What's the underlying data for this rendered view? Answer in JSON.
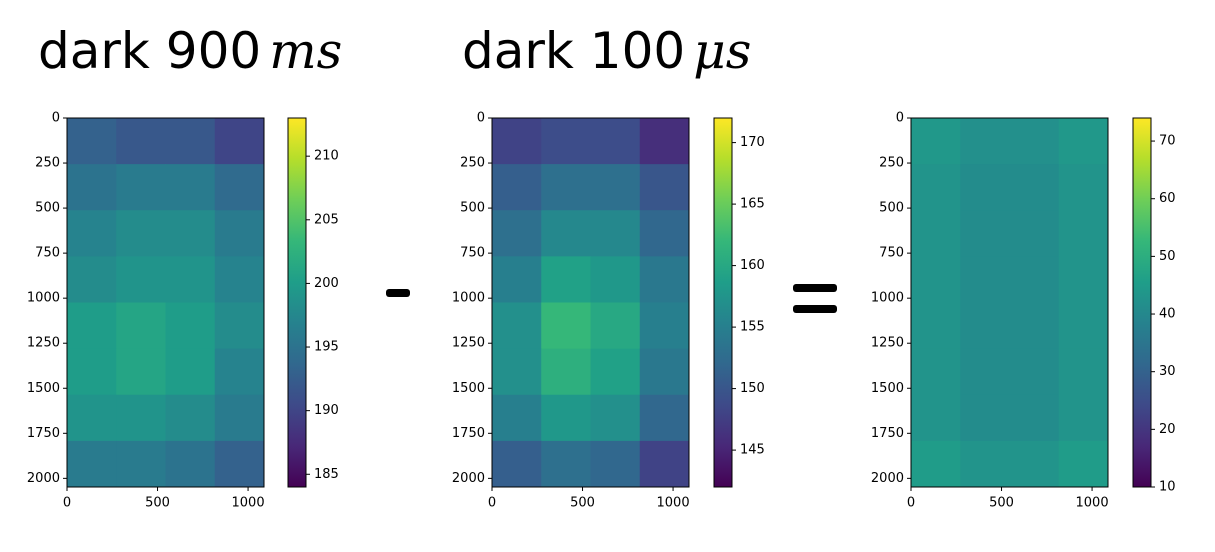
{
  "chart_data": [
    {
      "type": "heatmap",
      "title": "dark 900",
      "title_unit": "ms",
      "xlim": [
        0,
        1088
      ],
      "ylim": [
        2048,
        0
      ],
      "xticks": [
        0,
        500,
        1000
      ],
      "yticks": [
        0,
        250,
        500,
        750,
        1000,
        1250,
        1500,
        1750,
        2000
      ],
      "clim": [
        184,
        213
      ],
      "cticks": [
        185,
        190,
        195,
        200,
        205,
        210
      ],
      "colormap": "viridis",
      "z": [
        [
          193,
          192,
          192,
          190
        ],
        [
          195,
          196,
          196,
          194
        ],
        [
          197,
          198,
          198,
          196
        ],
        [
          198,
          199,
          199,
          197
        ],
        [
          200,
          201,
          200,
          198
        ],
        [
          200,
          201,
          200,
          197
        ],
        [
          199,
          199,
          198,
          196
        ],
        [
          196,
          196,
          195,
          193
        ]
      ]
    },
    {
      "type": "heatmap",
      "title": "dark 100",
      "title_unit": "μs",
      "xlim": [
        0,
        1088
      ],
      "ylim": [
        2048,
        0
      ],
      "xticks": [
        0,
        500,
        1000
      ],
      "yticks": [
        0,
        250,
        500,
        750,
        1000,
        1250,
        1500,
        1750,
        2000
      ],
      "clim": [
        142,
        172
      ],
      "cticks": [
        145,
        150,
        155,
        160,
        165,
        170
      ],
      "colormap": "viridis",
      "z": [
        [
          148,
          149,
          149,
          146
        ],
        [
          151,
          153,
          153,
          150
        ],
        [
          153,
          156,
          156,
          152
        ],
        [
          155,
          159,
          158,
          154
        ],
        [
          157,
          162,
          160,
          155
        ],
        [
          157,
          161,
          159,
          154
        ],
        [
          155,
          158,
          157,
          152
        ],
        [
          151,
          153,
          152,
          148
        ]
      ]
    },
    {
      "type": "heatmap",
      "xlim": [
        0,
        1088
      ],
      "ylim": [
        2048,
        0
      ],
      "xticks": [
        0,
        500,
        1000
      ],
      "yticks": [
        0,
        250,
        500,
        750,
        1000,
        1250,
        1500,
        1750,
        2000
      ],
      "clim": [
        10,
        74
      ],
      "cticks": [
        10,
        20,
        30,
        40,
        50,
        60,
        70
      ],
      "colormap": "viridis",
      "z": [
        [
          44,
          42,
          42,
          44
        ],
        [
          43,
          41,
          41,
          43
        ],
        [
          43,
          41,
          41,
          43
        ],
        [
          43,
          41,
          41,
          43
        ],
        [
          43,
          41,
          41,
          43
        ],
        [
          43,
          41,
          41,
          43
        ],
        [
          43,
          41,
          41,
          43
        ],
        [
          45,
          43,
          43,
          45
        ]
      ]
    }
  ]
}
